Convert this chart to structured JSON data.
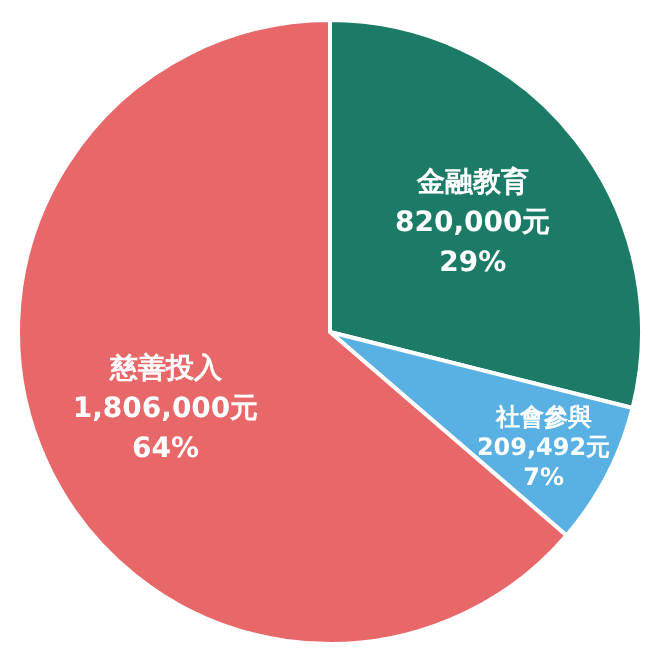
{
  "chart_data": {
    "type": "pie",
    "categories": [
      "金融教育",
      "社會參與",
      "慈善投入"
    ],
    "values": [
      820000,
      209492,
      1806000
    ],
    "value_labels": [
      "820,000元\n29%",
      "209,492元\n7%",
      "1,806,000元\n64%"
    ],
    "colors": [
      "#1b7b67",
      "#58b1e2",
      "#e8686a"
    ]
  }
}
